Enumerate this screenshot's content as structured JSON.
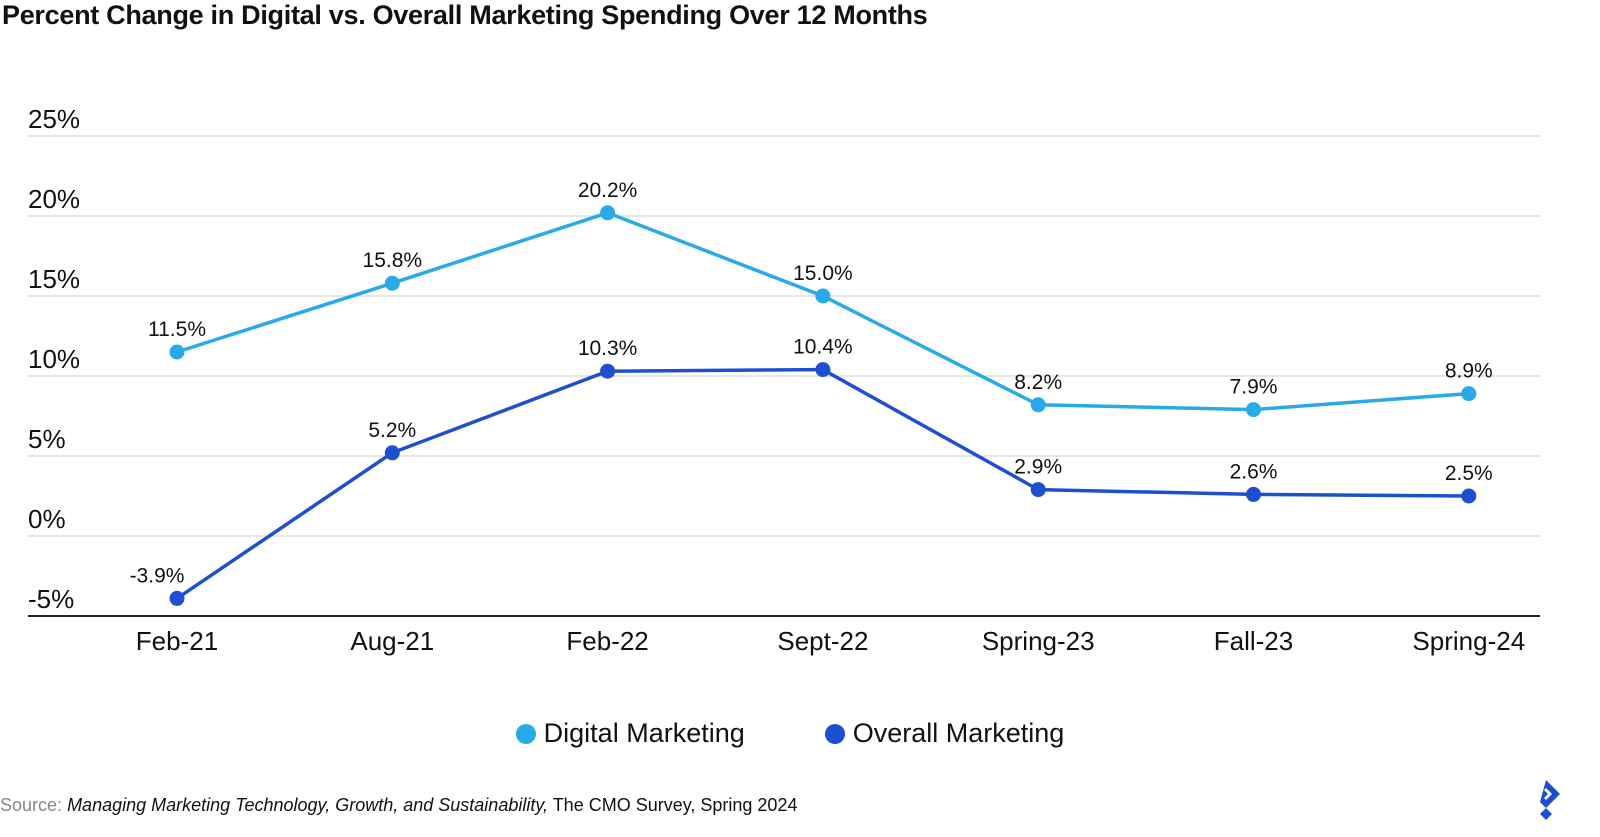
{
  "title": "Percent Change in Digital vs. Overall Marketing Spending Over 12 Months",
  "chart_data": {
    "type": "line",
    "title": "Percent Change in Digital vs. Overall Marketing Spending Over 12 Months",
    "categories": [
      "Feb-21",
      "Aug-21",
      "Feb-22",
      "Sept-22",
      "Spring-23",
      "Fall-23",
      "Spring-24"
    ],
    "series": [
      {
        "name": "Digital Marketing",
        "color": "#29aae8",
        "values": [
          11.5,
          15.8,
          20.2,
          15.0,
          8.2,
          7.9,
          8.9
        ],
        "labels": [
          "11.5%",
          "15.8%",
          "20.2%",
          "15.0%",
          "8.2%",
          "7.9%",
          "8.9%"
        ]
      },
      {
        "name": "Overall Marketing",
        "color": "#1f4fd1",
        "values": [
          -3.9,
          5.2,
          10.3,
          10.4,
          2.9,
          2.6,
          2.5
        ],
        "labels": [
          "-3.9%",
          "5.2%",
          "10.3%",
          "10.4%",
          "2.9%",
          "2.6%",
          "2.5%"
        ]
      }
    ],
    "yticks": [
      "-5%",
      "0%",
      "5%",
      "10%",
      "15%",
      "20%",
      "25%"
    ],
    "ylim": [
      -5,
      25
    ],
    "grid": true,
    "legend": "bottom"
  },
  "source": {
    "label": "Source:",
    "title": "Managing Marketing Technology, Growth, and Sustainability,",
    "rest": "The CMO Survey, Spring 2024"
  }
}
